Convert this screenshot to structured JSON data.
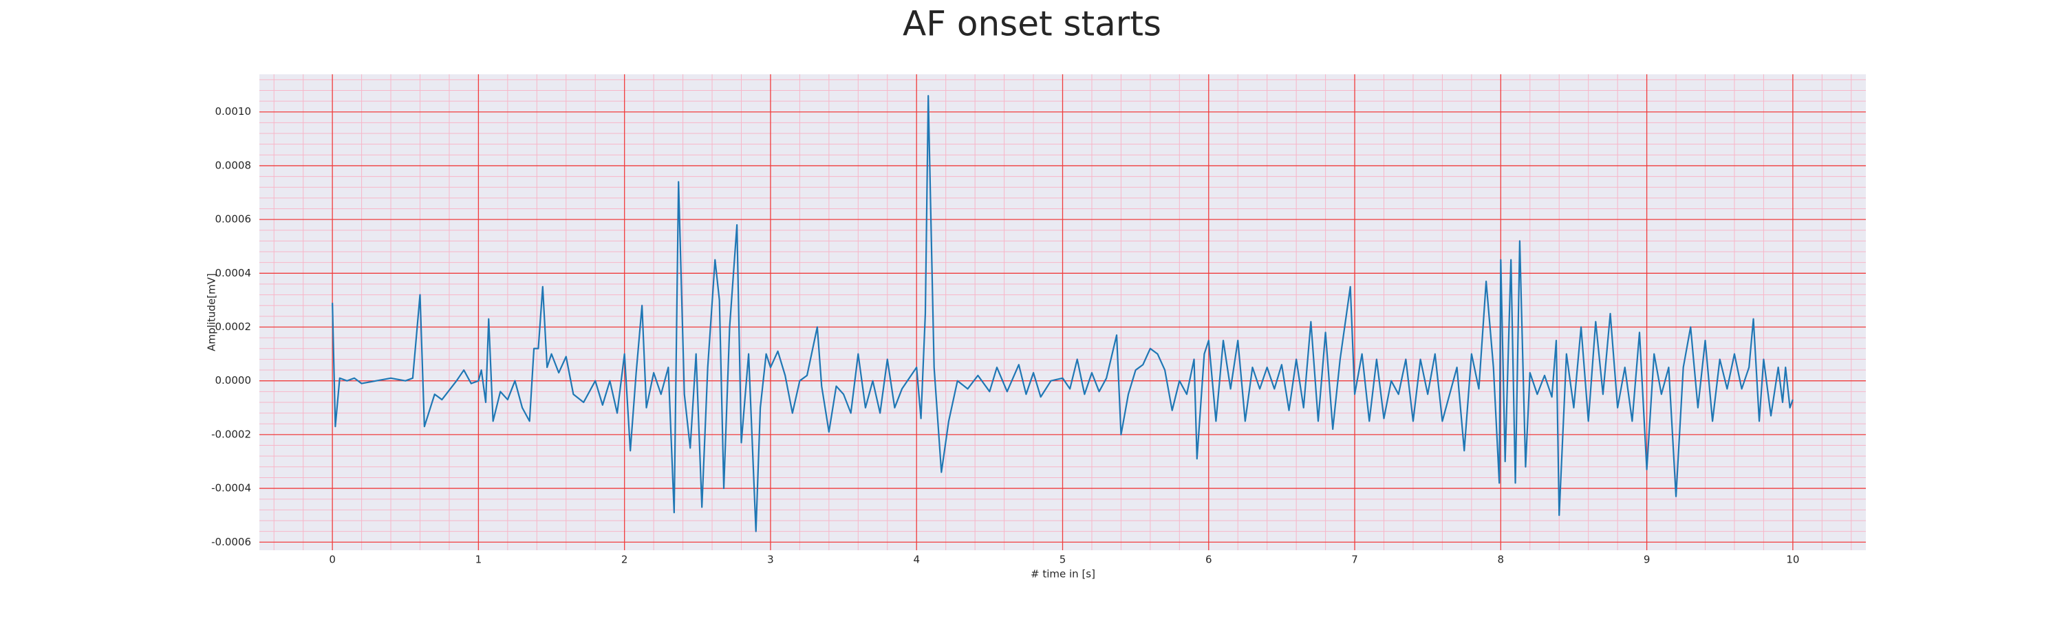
{
  "chart_data": {
    "type": "line",
    "title": "AF onset starts",
    "xlabel": "# time in [s]",
    "ylabel": "Amplitude[mV]",
    "grid": true,
    "minor_grid_divisions": 5,
    "xlim": [
      -0.5,
      10.5
    ],
    "ylim": [
      -0.00063,
      0.00114
    ],
    "xticks": [
      0,
      1,
      2,
      3,
      4,
      5,
      6,
      7,
      8,
      9,
      10
    ],
    "yticks": [
      {
        "value": -0.0006,
        "label": "-0.0006"
      },
      {
        "value": -0.0004,
        "label": "-0.0004"
      },
      {
        "value": -0.0002,
        "label": "-0.0002"
      },
      {
        "value": 0,
        "label": "0.0000"
      },
      {
        "value": 0.0002,
        "label": "0.0002"
      },
      {
        "value": 0.0004,
        "label": "0.0004"
      },
      {
        "value": 0.0006,
        "label": "0.0006"
      },
      {
        "value": 0.0008,
        "label": "0.0008"
      },
      {
        "value": 0.001,
        "label": "0.0010"
      }
    ],
    "series": [
      {
        "color": "#1f77b4",
        "x": [
          0,
          0.02,
          0.05,
          0.1,
          0.15,
          0.2,
          0.3,
          0.4,
          0.5,
          0.55,
          0.6,
          0.63,
          0.7,
          0.75,
          0.85,
          0.9,
          0.95,
          1.0,
          1.02,
          1.05,
          1.07,
          1.1,
          1.15,
          1.2,
          1.25,
          1.3,
          1.35,
          1.38,
          1.41,
          1.44,
          1.47,
          1.5,
          1.55,
          1.6,
          1.65,
          1.72,
          1.8,
          1.85,
          1.9,
          1.95,
          2.0,
          2.04,
          2.08,
          2.12,
          2.15,
          2.2,
          2.25,
          2.3,
          2.34,
          2.37,
          2.41,
          2.45,
          2.49,
          2.53,
          2.57,
          2.62,
          2.65,
          2.68,
          2.72,
          2.77,
          2.8,
          2.85,
          2.9,
          2.93,
          2.97,
          3.0,
          3.05,
          3.1,
          3.15,
          3.2,
          3.25,
          3.32,
          3.35,
          3.4,
          3.45,
          3.5,
          3.55,
          3.6,
          3.65,
          3.7,
          3.75,
          3.8,
          3.85,
          3.9,
          4.0,
          4.03,
          4.06,
          4.08,
          4.12,
          4.17,
          4.22,
          4.28,
          4.35,
          4.42,
          4.5,
          4.55,
          4.62,
          4.7,
          4.75,
          4.8,
          4.85,
          4.92,
          5.0,
          5.05,
          5.1,
          5.15,
          5.2,
          5.25,
          5.3,
          5.37,
          5.4,
          5.45,
          5.5,
          5.55,
          5.6,
          5.65,
          5.7,
          5.75,
          5.8,
          5.85,
          5.9,
          5.92,
          5.97,
          6.0,
          6.05,
          6.1,
          6.15,
          6.2,
          6.25,
          6.3,
          6.35,
          6.4,
          6.45,
          6.5,
          6.55,
          6.6,
          6.65,
          6.7,
          6.75,
          6.8,
          6.85,
          6.9,
          6.97,
          7.0,
          7.05,
          7.1,
          7.15,
          7.2,
          7.25,
          7.3,
          7.35,
          7.4,
          7.45,
          7.5,
          7.55,
          7.6,
          7.7,
          7.75,
          7.8,
          7.85,
          7.9,
          7.95,
          7.99,
          8.0,
          8.03,
          8.07,
          8.1,
          8.13,
          8.17,
          8.2,
          8.25,
          8.3,
          8.35,
          8.38,
          8.4,
          8.45,
          8.5,
          8.55,
          8.6,
          8.65,
          8.7,
          8.75,
          8.8,
          8.85,
          8.9,
          8.95,
          9.0,
          9.05,
          9.1,
          9.15,
          9.2,
          9.25,
          9.3,
          9.35,
          9.4,
          9.45,
          9.5,
          9.55,
          9.6,
          9.65,
          9.7,
          9.73,
          9.77,
          9.8,
          9.85,
          9.9,
          9.93,
          9.95,
          9.98,
          10.0
        ],
        "values": [
          0.00029,
          -0.00017,
          1e-05,
          0,
          1e-05,
          -1e-05,
          0,
          1e-05,
          0,
          1e-05,
          0.00032,
          -0.00017,
          -5e-05,
          -7e-05,
          0,
          4e-05,
          -1e-05,
          0,
          4e-05,
          -8e-05,
          0.00023,
          -0.00015,
          -4e-05,
          -7e-05,
          0,
          -0.0001,
          -0.00015,
          0.00012,
          0.00012,
          0.00035,
          5e-05,
          0.0001,
          3e-05,
          9e-05,
          -5e-05,
          -8e-05,
          0,
          -9e-05,
          0,
          -0.00012,
          0.0001,
          -0.00026,
          3e-05,
          0.00028,
          -0.0001,
          3e-05,
          -5e-05,
          5e-05,
          -0.00049,
          0.00074,
          -5e-05,
          -0.00025,
          0.0001,
          -0.00047,
          5e-05,
          0.00045,
          0.0003,
          -0.0004,
          0.0002,
          0.00058,
          -0.00023,
          0.0001,
          -0.00056,
          -0.0001,
          0.0001,
          5e-05,
          0.00011,
          2e-05,
          -0.00012,
          0,
          2e-05,
          0.0002,
          -2e-05,
          -0.00019,
          -2e-05,
          -5e-05,
          -0.00012,
          0.0001,
          -0.0001,
          0,
          -0.00012,
          8e-05,
          -0.0001,
          -3e-05,
          5e-05,
          -0.00014,
          0.00025,
          0.00106,
          5e-05,
          -0.00034,
          -0.00015,
          0,
          -3e-05,
          2e-05,
          -4e-05,
          5e-05,
          -4e-05,
          6e-05,
          -5e-05,
          3e-05,
          -6e-05,
          0,
          1e-05,
          -3e-05,
          8e-05,
          -5e-05,
          3e-05,
          -4e-05,
          1e-05,
          0.00017,
          -0.0002,
          -5e-05,
          4e-05,
          6e-05,
          0.00012,
          0.0001,
          4e-05,
          -0.00011,
          0,
          -5e-05,
          8e-05,
          -0.00029,
          0.0001,
          0.00015,
          -0.00015,
          0.00015,
          -3e-05,
          0.00015,
          -0.00015,
          5e-05,
          -3e-05,
          5e-05,
          -3e-05,
          6e-05,
          -0.00011,
          8e-05,
          -0.0001,
          0.00022,
          -0.00015,
          0.00018,
          -0.00018,
          8e-05,
          0.00035,
          -5e-05,
          0.0001,
          -0.00015,
          8e-05,
          -0.00014,
          0,
          -5e-05,
          8e-05,
          -0.00015,
          8e-05,
          -5e-05,
          0.0001,
          -0.00015,
          5e-05,
          -0.00026,
          0.0001,
          -3e-05,
          0.00037,
          5e-05,
          -0.00038,
          0.00045,
          -0.0003,
          0.00045,
          -0.00038,
          0.00052,
          -0.00032,
          3e-05,
          -5e-05,
          2e-05,
          -6e-05,
          0.00015,
          -0.0005,
          0.0001,
          -0.0001,
          0.0002,
          -0.00015,
          0.00022,
          -5e-05,
          0.00025,
          -0.0001,
          5e-05,
          -0.00015,
          0.00018,
          -0.00033,
          0.0001,
          -5e-05,
          5e-05,
          -0.00043,
          5e-05,
          0.0002,
          -0.0001,
          0.00015,
          -0.00015,
          8e-05,
          -3e-05,
          0.0001,
          -3e-05,
          5e-05,
          0.00023,
          -0.00015,
          8e-05,
          -0.00013,
          5e-05,
          -8e-05,
          5e-05,
          -0.0001,
          -7e-05
        ]
      }
    ]
  }
}
